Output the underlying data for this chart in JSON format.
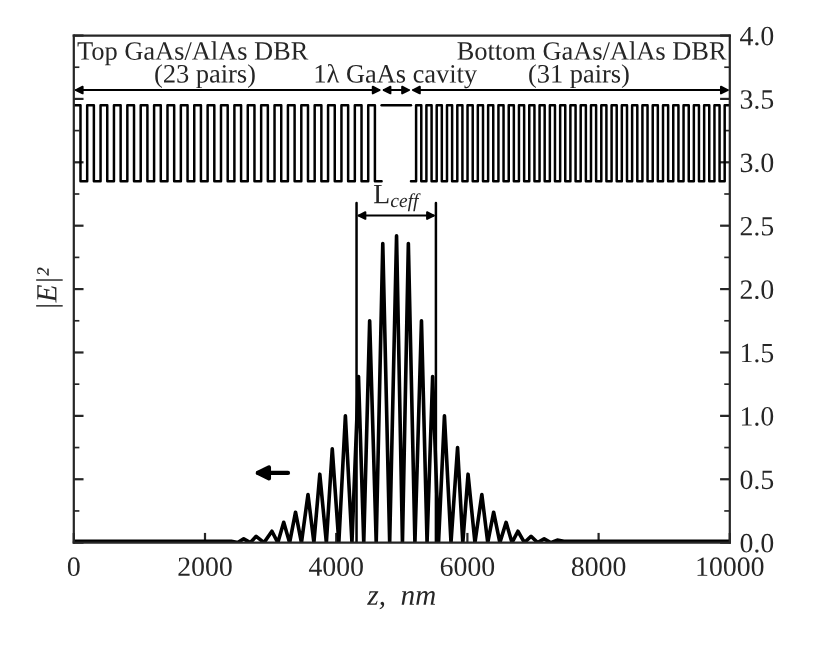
{
  "chart_data": {
    "type": "line",
    "xlabel": "z,  nm",
    "ylabel": "|E|²",
    "xlim": [
      0,
      10000
    ],
    "xticks": [
      0,
      2000,
      4000,
      6000,
      8000,
      10000
    ],
    "ylim": [
      0,
      4.0
    ],
    "yticks": [
      {
        "value": 0,
        "label": "0.0"
      },
      {
        "value": 0.5,
        "label": "0.5"
      },
      {
        "value": 1,
        "label": "1.0"
      },
      {
        "value": 1.5,
        "label": "1.5"
      },
      {
        "value": 2,
        "label": "2.0"
      },
      {
        "value": 2.5,
        "label": "2.5"
      },
      {
        "value": 3,
        "label": "3.0"
      },
      {
        "value": 3.5,
        "label": "3.5"
      },
      {
        "value": 4,
        "label": "4.0"
      }
    ],
    "series": [
      {
        "color": "#000000",
        "x": [
          0,
          2400,
          2500,
          2590,
          2690,
          2780,
          2900,
          3020,
          3110,
          3200,
          3290,
          3380,
          3470,
          3570,
          3660,
          3750,
          3850,
          3940,
          4040,
          4140,
          4240,
          4340,
          4420,
          4510,
          4610,
          4710,
          4815,
          4920,
          5010,
          5100,
          5200,
          5300,
          5385,
          5470,
          5560,
          5650,
          5750,
          5850,
          5930,
          6010,
          6115,
          6220,
          6310,
          6400,
          6495,
          6590,
          6680,
          6770,
          6870,
          6970,
          7070,
          7170,
          7270,
          7370,
          7470,
          10000
        ],
        "values": [
          0.01,
          0.01,
          0,
          0.03,
          0,
          0.05,
          0,
          0.09,
          0,
          0.16,
          0,
          0.24,
          0,
          0.38,
          0,
          0.54,
          0,
          0.74,
          0,
          1.0,
          0,
          1.31,
          0,
          1.75,
          0,
          2.36,
          0,
          2.42,
          0,
          2.36,
          0,
          1.75,
          0,
          1.31,
          0,
          1.0,
          0,
          0.75,
          0,
          0.54,
          0,
          0.38,
          0,
          0.24,
          0,
          0.16,
          0,
          0.09,
          0,
          0.05,
          0,
          0.03,
          0,
          0.02,
          0.01,
          0.01
        ]
      },
      {
        "type": "step",
        "color": "#000000",
        "x": [
          0,
          102,
          204,
          306,
          408,
          510,
          612,
          714,
          816,
          918,
          1020,
          1122,
          1224,
          1326,
          1428,
          1530,
          1632,
          1734,
          1836,
          1938,
          2040,
          2142,
          2244,
          2346,
          2448,
          2550,
          2652,
          2754,
          2856,
          2958,
          3060,
          3162,
          3264,
          3366,
          3468,
          3570,
          3672,
          3774,
          3876,
          3978,
          4080,
          4182,
          4284,
          4386,
          4488,
          4590,
          4692
        ],
        "values": [
          3.45,
          2.85,
          3.45,
          2.85,
          3.45,
          2.85,
          3.45,
          2.85,
          3.45,
          2.85,
          3.45,
          2.85,
          3.45,
          2.85,
          3.45,
          2.85,
          3.45,
          2.85,
          3.45,
          2.85,
          3.45,
          2.85,
          3.45,
          2.85,
          3.45,
          2.85,
          3.45,
          2.85,
          3.45,
          2.85,
          3.45,
          2.85,
          3.45,
          2.85,
          3.45,
          2.85,
          3.45,
          2.85,
          3.45,
          2.85,
          3.45,
          2.85,
          3.45,
          2.85,
          3.45,
          2.85,
          2.85
        ]
      },
      {
        "type": "step",
        "color": "#000000",
        "x": [
          4692,
          5140
        ],
        "values": [
          3.45,
          3.45
        ]
      },
      {
        "type": "step",
        "color": "#000000",
        "x": [
          5140,
          5218,
          5297,
          5375,
          5454,
          5532,
          5610,
          5689,
          5767,
          5846,
          5924,
          6002,
          6081,
          6159,
          6238,
          6316,
          6394,
          6473,
          6551,
          6630,
          6708,
          6786,
          6865,
          6943,
          7022,
          7100,
          7178,
          7257,
          7335,
          7414,
          7492,
          7570,
          7649,
          7727,
          7806,
          7884,
          7962,
          8041,
          8119,
          8198,
          8276,
          8354,
          8433,
          8511,
          8590,
          8668,
          8746,
          8825,
          8903,
          8982,
          9060,
          9138,
          9217,
          9295,
          9374,
          9452,
          9530,
          9609,
          9687,
          9766,
          9844,
          9922,
          10000
        ],
        "values": [
          2.85,
          3.45,
          2.85,
          3.45,
          2.85,
          3.45,
          2.85,
          3.45,
          2.85,
          3.45,
          2.85,
          3.45,
          2.85,
          3.45,
          2.85,
          3.45,
          2.85,
          3.45,
          2.85,
          3.45,
          2.85,
          3.45,
          2.85,
          3.45,
          2.85,
          3.45,
          2.85,
          3.45,
          2.85,
          3.45,
          2.85,
          3.45,
          2.85,
          3.45,
          2.85,
          3.45,
          2.85,
          3.45,
          2.85,
          3.45,
          2.85,
          3.45,
          2.85,
          3.45,
          2.85,
          3.45,
          2.85,
          3.45,
          2.85,
          3.45,
          2.85,
          3.45,
          2.85,
          3.45,
          2.85,
          3.45,
          2.85,
          3.45,
          2.85,
          3.45,
          2.85,
          3.45,
          3.45
        ]
      }
    ],
    "ref_lines": [
      {
        "axis": "x",
        "value": 4310,
        "label": "L$_{ceff}$",
        "color": "#000000"
      },
      {
        "axis": "x",
        "value": 5520,
        "color": "#000000"
      }
    ],
    "annotations": [
      "Top GaAs/AlAs DBR",
      "(23 pairs)",
      "1λ GaAs cavity",
      "Bottom GaAs/AlAs DBR",
      "(31 pairs)"
    ],
    "legend": false,
    "grid": false
  }
}
